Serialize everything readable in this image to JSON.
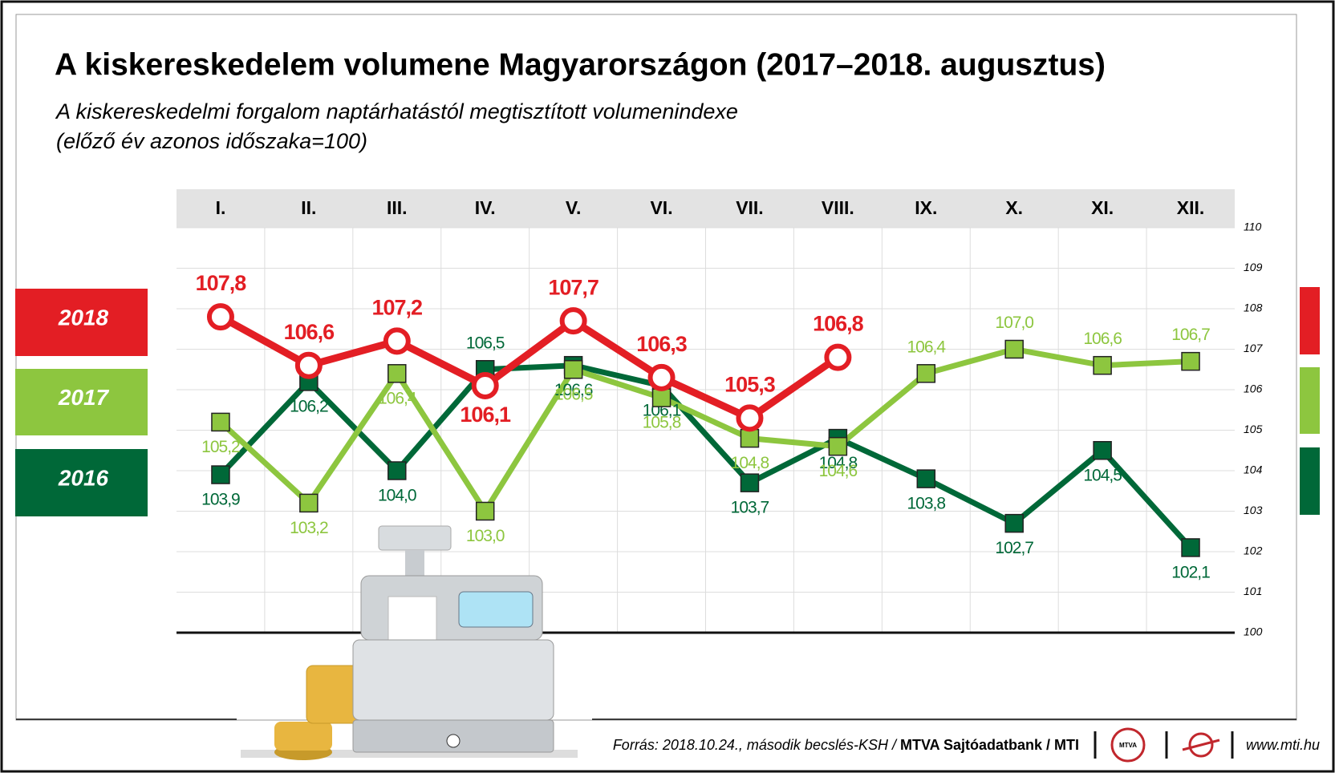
{
  "chart_data": {
    "type": "line",
    "title": "A kiskereskedelem volumene Magyarországon (2017–2018. augusztus)",
    "subtitle": [
      "A kiskereskedelmi forgalom naptárhatástól megtisztított volumenindexe",
      "(előző év azonos időszaka=100)"
    ],
    "categories": [
      "I.",
      "II.",
      "III.",
      "IV.",
      "V.",
      "VI.",
      "VII.",
      "VIII.",
      "IX.",
      "X.",
      "XI.",
      "XII."
    ],
    "series": [
      {
        "name": "2018",
        "color": "#e31e24",
        "values": [
          107.8,
          106.6,
          107.2,
          106.1,
          107.7,
          106.3,
          105.3,
          106.8,
          null,
          null,
          null,
          null
        ],
        "value_labels": [
          "107,8",
          "106,6",
          "107,2",
          "106,1",
          "107,7",
          "106,3",
          "105,3",
          "106,8",
          null,
          null,
          null,
          null
        ]
      },
      {
        "name": "2017",
        "color": "#8dc63f",
        "values": [
          105.2,
          103.2,
          106.4,
          103.0,
          106.5,
          105.8,
          104.8,
          104.6,
          106.4,
          107.0,
          106.6,
          106.7
        ],
        "value_labels": [
          "105,2",
          "103,2",
          "106,4",
          "103,0",
          "106,5",
          "105,8",
          "104,8",
          "104,6",
          "106,4",
          "107,0",
          "106,6",
          "106,7"
        ]
      },
      {
        "name": "2016",
        "color": "#006838",
        "values": [
          103.9,
          106.2,
          104.0,
          106.5,
          106.6,
          106.1,
          103.7,
          104.8,
          103.8,
          102.7,
          104.5,
          102.1
        ],
        "value_labels": [
          "103,9",
          "106,2",
          "104,0",
          "106,5",
          "106,6",
          "106,1",
          "103,7",
          "104,8",
          "103,8",
          "102,7",
          "104,5",
          "102,1"
        ]
      }
    ],
    "ylim": [
      100,
      110
    ],
    "yticks": [
      100,
      101,
      102,
      103,
      104,
      105,
      106,
      107,
      108,
      109,
      110
    ],
    "grid": true,
    "source": "Forrás: 2018.10.24., második becslés-KSH / ",
    "source_bold": "MTVA Sajtóadatbank / MTI",
    "logo": "MTVA",
    "website": "www.mti.hu"
  }
}
